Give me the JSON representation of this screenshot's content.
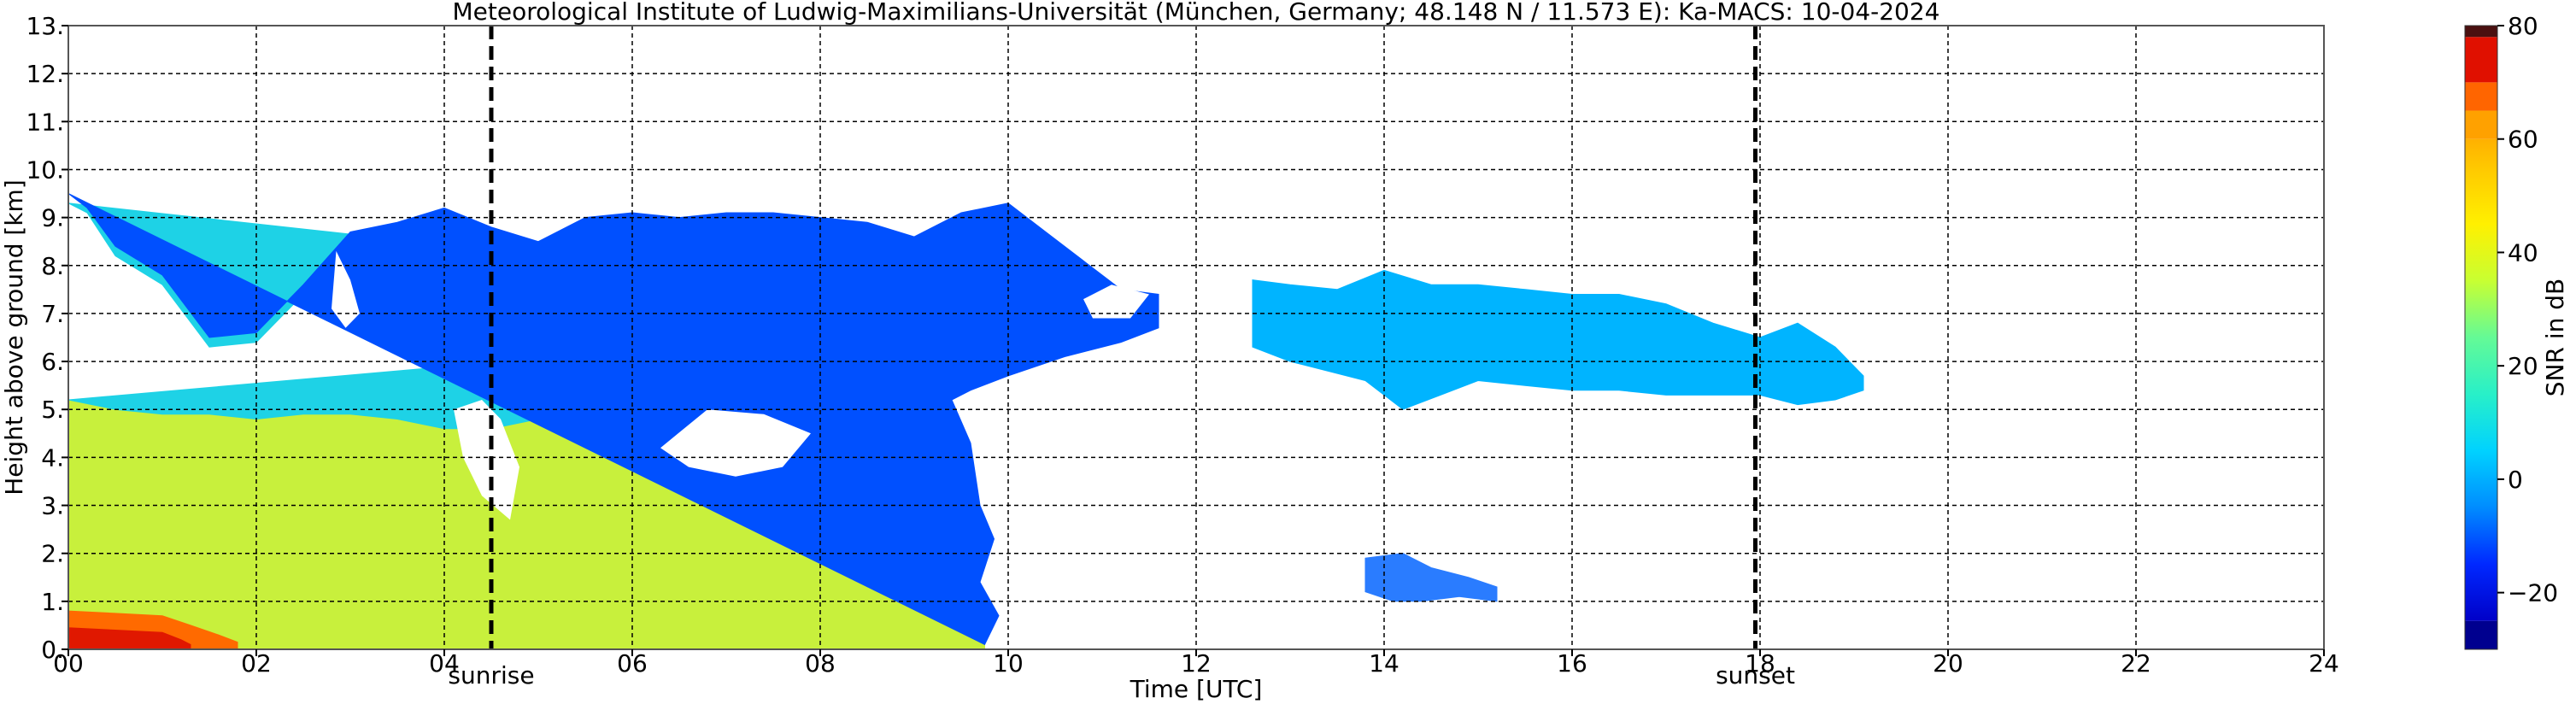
{
  "chart_data": {
    "type": "heatmap",
    "title": "Meteorological Institute of Ludwig-Maximilians-Universität (München, Germany; 48.148 N / 11.573 E):    Ka-MACS: 10-04-2024",
    "xlabel": "Time [UTC]",
    "ylabel": "Height above ground [km]",
    "xlim": [
      0,
      24
    ],
    "ylim": [
      0,
      13
    ],
    "grid": true,
    "x_ticks": [
      {
        "value": 0,
        "label": "00"
      },
      {
        "value": 2,
        "label": "02"
      },
      {
        "value": 4,
        "label": "04"
      },
      {
        "value": 6,
        "label": "06"
      },
      {
        "value": 8,
        "label": "08"
      },
      {
        "value": 10,
        "label": "10"
      },
      {
        "value": 12,
        "label": "12"
      },
      {
        "value": 14,
        "label": "14"
      },
      {
        "value": 16,
        "label": "16"
      },
      {
        "value": 18,
        "label": "18"
      },
      {
        "value": 20,
        "label": "20"
      },
      {
        "value": 22,
        "label": "22"
      },
      {
        "value": 24,
        "label": "24"
      }
    ],
    "y_ticks": [
      {
        "value": 0,
        "label": "0."
      },
      {
        "value": 1,
        "label": "1."
      },
      {
        "value": 2,
        "label": "2."
      },
      {
        "value": 3,
        "label": "3."
      },
      {
        "value": 4,
        "label": "4."
      },
      {
        "value": 5,
        "label": "5."
      },
      {
        "value": 6,
        "label": "6."
      },
      {
        "value": 7,
        "label": "7."
      },
      {
        "value": 8,
        "label": "8."
      },
      {
        "value": 9,
        "label": "9."
      },
      {
        "value": 10,
        "label": "10."
      },
      {
        "value": 11,
        "label": "11."
      },
      {
        "value": 12,
        "label": "12."
      },
      {
        "value": 13,
        "label": "13."
      }
    ],
    "markers": [
      {
        "label": "sunrise",
        "x": 4.5
      },
      {
        "label": "sunset",
        "x": 17.95
      }
    ],
    "colorbar": {
      "label": "SNR in dB",
      "range": [
        -30,
        80
      ],
      "ticks": [
        {
          "value": -20,
          "label": "−20"
        },
        {
          "value": 0,
          "label": "0"
        },
        {
          "value": 20,
          "label": "20"
        },
        {
          "value": 40,
          "label": "40"
        },
        {
          "value": 60,
          "label": "60"
        },
        {
          "value": 80,
          "label": "80"
        }
      ],
      "segments": [
        {
          "from": -30,
          "to": -25,
          "color": "#00008f"
        },
        {
          "from": 60,
          "to": 65,
          "color": "#ffa100"
        },
        {
          "from": 65,
          "to": 70,
          "color": "#ff6500"
        },
        {
          "from": 70,
          "to": 78,
          "color": "#e01000"
        },
        {
          "from": 78,
          "to": 80,
          "color": "#4a1010"
        }
      ],
      "gradient": [
        {
          "value": -25,
          "color": "#0000c8"
        },
        {
          "value": -15,
          "color": "#0028ff"
        },
        {
          "value": -5,
          "color": "#008cff"
        },
        {
          "value": 5,
          "color": "#00d2ff"
        },
        {
          "value": 15,
          "color": "#28f0c8"
        },
        {
          "value": 25,
          "color": "#64fa96"
        },
        {
          "value": 35,
          "color": "#c8ff32"
        },
        {
          "value": 45,
          "color": "#fff000"
        },
        {
          "value": 55,
          "color": "#ffc800"
        },
        {
          "value": 60,
          "color": "#ffb000"
        }
      ]
    },
    "regions": [
      {
        "name": "main-cloud-lower",
        "snr": 30,
        "color": "#c8f03c",
        "top": [
          [
            0,
            5.2
          ],
          [
            0.5,
            5.0
          ],
          [
            1,
            4.9
          ],
          [
            1.5,
            4.9
          ],
          [
            2,
            4.8
          ],
          [
            2.5,
            4.9
          ],
          [
            3,
            4.9
          ],
          [
            3.5,
            4.8
          ],
          [
            4,
            4.6
          ],
          [
            4.5,
            4.6
          ],
          [
            5,
            4.8
          ],
          [
            5.5,
            4.9
          ],
          [
            6,
            5.0
          ],
          [
            6.5,
            4.8
          ],
          [
            7,
            4.6
          ],
          [
            7.5,
            4.8
          ],
          [
            8,
            4.8
          ],
          [
            8.5,
            4.6
          ],
          [
            9,
            3.6
          ],
          [
            9.3,
            2.8
          ],
          [
            9.55,
            2.2
          ],
          [
            9.7,
            1.2
          ],
          [
            9.75,
            0.4
          ]
        ],
        "bottom_y": 0
      },
      {
        "name": "main-cloud-upper",
        "snr": 10,
        "color": "#1ed2e6",
        "top": [
          [
            0,
            9.3
          ],
          [
            0.2,
            9.1
          ],
          [
            0.5,
            8.2
          ],
          [
            1,
            7.6
          ],
          [
            1.5,
            6.3
          ],
          [
            2,
            6.4
          ],
          [
            2.5,
            7.4
          ],
          [
            3,
            8.5
          ],
          [
            3.5,
            8.7
          ],
          [
            4,
            9.0
          ],
          [
            4.5,
            8.6
          ],
          [
            5,
            8.3
          ],
          [
            5.5,
            8.8
          ],
          [
            6,
            8.9
          ],
          [
            6.5,
            8.8
          ],
          [
            7,
            8.9
          ],
          [
            7.5,
            8.9
          ],
          [
            8,
            8.8
          ],
          [
            8.5,
            8.7
          ],
          [
            9,
            8.4
          ],
          [
            9.5,
            8.9
          ],
          [
            10,
            9.1
          ],
          [
            10.4,
            8.5
          ],
          [
            10.8,
            7.9
          ],
          [
            11.2,
            7.3
          ],
          [
            11.6,
            7.2
          ]
        ],
        "bottom": [
          [
            0,
            5.2
          ],
          [
            0.5,
            5.0
          ],
          [
            1,
            4.9
          ],
          [
            1.5,
            4.9
          ],
          [
            2,
            4.8
          ],
          [
            2.5,
            4.9
          ],
          [
            3,
            4.9
          ],
          [
            3.5,
            4.8
          ],
          [
            4,
            4.6
          ],
          [
            4.5,
            4.6
          ],
          [
            5,
            4.8
          ],
          [
            5.5,
            4.9
          ],
          [
            6,
            5.0
          ],
          [
            6.5,
            4.8
          ],
          [
            7,
            4.6
          ],
          [
            7.5,
            4.8
          ],
          [
            8,
            4.8
          ],
          [
            8.5,
            4.6
          ],
          [
            9,
            5.4
          ],
          [
            9.6,
            5.6
          ],
          [
            10,
            5.9
          ],
          [
            10.6,
            6.3
          ],
          [
            11.2,
            6.6
          ],
          [
            11.6,
            6.8
          ]
        ]
      },
      {
        "name": "main-cloud-edge",
        "snr": -15,
        "color": "#0050ff",
        "top": [
          [
            0,
            9.5
          ],
          [
            0.2,
            9.2
          ],
          [
            0.5,
            8.4
          ],
          [
            1,
            7.8
          ],
          [
            1.5,
            6.5
          ],
          [
            2,
            6.6
          ],
          [
            2.5,
            7.6
          ],
          [
            3,
            8.7
          ],
          [
            3.5,
            8.9
          ],
          [
            4,
            9.2
          ],
          [
            4.5,
            8.8
          ],
          [
            5,
            8.5
          ],
          [
            5.5,
            9.0
          ],
          [
            6,
            9.1
          ],
          [
            6.5,
            9.0
          ],
          [
            7,
            9.1
          ],
          [
            7.5,
            9.1
          ],
          [
            8,
            9.0
          ],
          [
            8.5,
            8.9
          ],
          [
            9,
            8.6
          ],
          [
            9.5,
            9.1
          ],
          [
            10,
            9.3
          ],
          [
            10.4,
            8.7
          ],
          [
            10.8,
            8.1
          ],
          [
            11.2,
            7.5
          ],
          [
            11.6,
            7.4
          ]
        ],
        "bottom": [
          [
            11.6,
            6.7
          ],
          [
            11.2,
            6.4
          ],
          [
            10.6,
            6.1
          ],
          [
            10,
            5.7
          ],
          [
            9.6,
            5.4
          ],
          [
            9.4,
            5.2
          ],
          [
            9.6,
            4.3
          ],
          [
            9.7,
            3.0
          ],
          [
            9.85,
            2.3
          ],
          [
            9.7,
            1.4
          ],
          [
            9.9,
            0.7
          ],
          [
            9.75,
            0.1
          ]
        ]
      },
      {
        "name": "anvil-cloud",
        "snr": 5,
        "color": "#00b4ff",
        "top": [
          [
            12.6,
            7.7
          ],
          [
            13,
            7.6
          ],
          [
            13.5,
            7.5
          ],
          [
            14,
            7.9
          ],
          [
            14.5,
            7.6
          ],
          [
            15,
            7.6
          ],
          [
            15.5,
            7.5
          ],
          [
            16,
            7.4
          ],
          [
            16.5,
            7.4
          ],
          [
            17,
            7.2
          ],
          [
            17.5,
            6.8
          ],
          [
            18,
            6.5
          ],
          [
            18.4,
            6.8
          ],
          [
            18.8,
            6.3
          ],
          [
            19.1,
            5.7
          ]
        ],
        "bottom": [
          [
            19.1,
            5.4
          ],
          [
            18.8,
            5.2
          ],
          [
            18.4,
            5.1
          ],
          [
            18,
            5.3
          ],
          [
            17.5,
            5.3
          ],
          [
            17,
            5.3
          ],
          [
            16.5,
            5.4
          ],
          [
            16,
            5.4
          ],
          [
            15.5,
            5.5
          ],
          [
            15,
            5.6
          ],
          [
            14.6,
            5.3
          ],
          [
            14.2,
            5.0
          ],
          [
            13.8,
            5.6
          ],
          [
            13.4,
            5.8
          ],
          [
            13,
            6.0
          ],
          [
            12.6,
            6.3
          ]
        ]
      },
      {
        "name": "low-cloud-patch",
        "snr": -5,
        "color": "#2a7cff",
        "top": [
          [
            13.8,
            1.9
          ],
          [
            14.2,
            2.0
          ],
          [
            14.5,
            1.7
          ],
          [
            14.9,
            1.5
          ],
          [
            15.2,
            1.3
          ]
        ],
        "bottom": [
          [
            15.2,
            1.0
          ],
          [
            14.8,
            1.1
          ],
          [
            14.4,
            1.0
          ],
          [
            14.1,
            1.0
          ],
          [
            13.8,
            1.2
          ]
        ]
      },
      {
        "name": "surface-hot-layer",
        "snr": 65,
        "color": "#ff6a00",
        "top": [
          [
            0,
            0.8
          ],
          [
            0.5,
            0.75
          ],
          [
            1,
            0.7
          ],
          [
            1.3,
            0.5
          ],
          [
            1.6,
            0.3
          ],
          [
            1.8,
            0.15
          ]
        ],
        "bottom_y": 0
      },
      {
        "name": "surface-red-layer",
        "snr": 72,
        "color": "#e01800",
        "top": [
          [
            0,
            0.45
          ],
          [
            0.5,
            0.4
          ],
          [
            1,
            0.35
          ],
          [
            1.2,
            0.2
          ],
          [
            1.3,
            0.1
          ]
        ],
        "bottom_y": 0
      },
      {
        "name": "gap-morning",
        "snr": null,
        "color": "#ffffff",
        "top": [
          [
            4.1,
            5.0
          ],
          [
            4.4,
            5.2
          ],
          [
            4.6,
            4.8
          ],
          [
            4.8,
            3.8
          ],
          [
            4.7,
            2.7
          ],
          [
            4.4,
            3.2
          ],
          [
            4.2,
            4.0
          ]
        ],
        "bottom": []
      },
      {
        "name": "gap-central",
        "snr": null,
        "color": "#ffffff",
        "top": [
          [
            6.3,
            4.2
          ],
          [
            6.8,
            5.0
          ],
          [
            7.4,
            4.9
          ],
          [
            7.9,
            4.5
          ],
          [
            7.6,
            3.8
          ],
          [
            7.1,
            3.6
          ],
          [
            6.6,
            3.8
          ]
        ],
        "bottom": []
      },
      {
        "name": "gap-early",
        "snr": null,
        "color": "#ffffff",
        "top": [
          [
            2.85,
            8.3
          ],
          [
            3.0,
            7.7
          ],
          [
            3.1,
            7.0
          ],
          [
            2.95,
            6.7
          ],
          [
            2.8,
            7.1
          ]
        ],
        "bottom": []
      },
      {
        "name": "gap-mid",
        "snr": null,
        "color": "#ffffff",
        "top": [
          [
            10.8,
            7.3
          ],
          [
            11.1,
            7.6
          ],
          [
            11.5,
            7.4
          ],
          [
            11.3,
            6.9
          ],
          [
            10.9,
            6.9
          ]
        ],
        "bottom": []
      }
    ]
  }
}
